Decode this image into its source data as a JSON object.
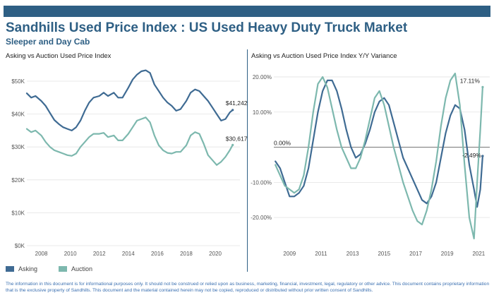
{
  "header": {
    "title": "Sandhills Used Price Index : US Used Heavy Duty Truck Market",
    "subtitle": "Sleeper and Day Cab",
    "bar_color": "#2e5f84"
  },
  "legend": {
    "asking": "Asking",
    "auction": "Auction",
    "asking_color": "#3f6b93",
    "auction_color": "#7db8ae"
  },
  "disclaimer": "The information in this document is for informational purposes only.  It should not be construed or relied upon as business, marketing, financial, investment, legal, regulatory or other advice. This document contains proprietary information that is the exclusive property of Sandhills. This document and the material contained herein may not be copied, reproduced or distributed without prior written consent of Sandhills.",
  "chart_data": [
    {
      "type": "line",
      "title": "Asking vs Auction Used Price Index",
      "ylim": [
        0,
        50000
      ],
      "xlim": [
        2007.0,
        2021.7
      ],
      "y_ticks": [
        0,
        10000,
        20000,
        30000,
        40000,
        50000
      ],
      "y_tick_labels": [
        "$0K",
        "$10K",
        "$20K",
        "$30K",
        "$40K",
        "$50K"
      ],
      "x_ticks": [
        2008,
        2010,
        2012,
        2014,
        2016,
        2018,
        2020
      ],
      "x_tick_labels": [
        "2008",
        "2010",
        "2012",
        "2014",
        "2016",
        "2018",
        "2020"
      ],
      "grid": "horizontal",
      "series": [
        {
          "name": "Asking",
          "color": "#3f6b93",
          "x": [
            2007.0,
            2007.3,
            2007.6,
            2008.0,
            2008.3,
            2008.6,
            2008.9,
            2009.2,
            2009.5,
            2009.8,
            2010.1,
            2010.4,
            2010.7,
            2011.0,
            2011.3,
            2011.6,
            2012.0,
            2012.3,
            2012.6,
            2013.0,
            2013.3,
            2013.6,
            2014.0,
            2014.3,
            2014.6,
            2014.9,
            2015.2,
            2015.5,
            2015.8,
            2016.1,
            2016.4,
            2016.7,
            2017.0,
            2017.3,
            2017.6,
            2018.0,
            2018.3,
            2018.6,
            2018.9,
            2019.2,
            2019.5,
            2019.8,
            2020.1,
            2020.4,
            2020.7,
            2021.0,
            2021.2
          ],
          "values": [
            46300,
            45000,
            45500,
            44000,
            42500,
            40300,
            38200,
            37000,
            36000,
            35500,
            35000,
            36000,
            38000,
            41000,
            43500,
            45000,
            45500,
            46500,
            45500,
            46500,
            45000,
            45000,
            48000,
            50500,
            52000,
            53000,
            53300,
            52500,
            49000,
            47000,
            45000,
            43500,
            42500,
            41000,
            41500,
            44000,
            46500,
            47500,
            47000,
            45500,
            44000,
            42000,
            40000,
            38000,
            38500,
            40500,
            41242
          ]
        },
        {
          "name": "Auction",
          "color": "#7db8ae",
          "x": [
            2007.0,
            2007.3,
            2007.6,
            2008.0,
            2008.3,
            2008.6,
            2008.9,
            2009.2,
            2009.5,
            2009.8,
            2010.1,
            2010.4,
            2010.7,
            2011.0,
            2011.3,
            2011.6,
            2012.0,
            2012.3,
            2012.6,
            2013.0,
            2013.3,
            2013.6,
            2014.0,
            2014.3,
            2014.6,
            2014.9,
            2015.2,
            2015.5,
            2015.8,
            2016.1,
            2016.4,
            2016.7,
            2017.0,
            2017.3,
            2017.6,
            2018.0,
            2018.3,
            2018.6,
            2018.9,
            2019.2,
            2019.5,
            2019.8,
            2020.1,
            2020.4,
            2020.7,
            2021.0,
            2021.2
          ],
          "values": [
            35500,
            34500,
            35000,
            33500,
            31500,
            30000,
            29000,
            28500,
            28000,
            27500,
            27300,
            28000,
            30000,
            31500,
            33000,
            34000,
            34000,
            34300,
            33000,
            33500,
            32000,
            32000,
            34000,
            36000,
            38000,
            38500,
            39000,
            37500,
            33500,
            30500,
            29000,
            28200,
            28000,
            28500,
            28500,
            30500,
            33500,
            34500,
            34000,
            31000,
            27500,
            26000,
            24500,
            25500,
            27000,
            29000,
            30617
          ]
        }
      ],
      "annotations": [
        {
          "text": "$41,242",
          "x": 2021.2,
          "y": 41242
        },
        {
          "text": "$30,617",
          "x": 2021.2,
          "y": 30617
        }
      ]
    },
    {
      "type": "line",
      "title": "Asking vs Auction Used Price Index Y/Y Variance",
      "ylim": [
        -0.28,
        0.22
      ],
      "xlim": [
        2008.0,
        2021.7
      ],
      "y_ticks": [
        -0.2,
        -0.1,
        0,
        0.1,
        0.2
      ],
      "y_tick_labels": [
        "-20.00%",
        "-10.00%",
        "0.00%",
        "10.00%",
        "20.00%"
      ],
      "x_ticks": [
        2009,
        2011,
        2013,
        2015,
        2017,
        2019,
        2021
      ],
      "x_tick_labels": [
        "2009",
        "2011",
        "2013",
        "2015",
        "2017",
        "2019",
        "2021"
      ],
      "grid": "horizontal",
      "series": [
        {
          "name": "Asking",
          "color": "#3f6b93",
          "x": [
            2008.1,
            2008.4,
            2008.7,
            2009.0,
            2009.3,
            2009.6,
            2009.9,
            2010.2,
            2010.5,
            2010.8,
            2011.1,
            2011.4,
            2011.7,
            2012.0,
            2012.3,
            2012.6,
            2012.9,
            2013.2,
            2013.5,
            2013.8,
            2014.1,
            2014.4,
            2014.7,
            2015.0,
            2015.3,
            2015.6,
            2015.9,
            2016.2,
            2016.5,
            2016.8,
            2017.1,
            2017.4,
            2017.7,
            2018.0,
            2018.3,
            2018.6,
            2018.9,
            2019.2,
            2019.5,
            2019.8,
            2020.1,
            2020.4,
            2020.7,
            2020.9,
            2021.1,
            2021.25
          ],
          "values": [
            -0.04,
            -0.06,
            -0.1,
            -0.14,
            -0.14,
            -0.13,
            -0.11,
            -0.06,
            0.02,
            0.1,
            0.16,
            0.19,
            0.19,
            0.16,
            0.11,
            0.05,
            0.0,
            -0.03,
            -0.02,
            0.01,
            0.05,
            0.1,
            0.13,
            0.14,
            0.12,
            0.07,
            0.02,
            -0.03,
            -0.06,
            -0.09,
            -0.12,
            -0.15,
            -0.16,
            -0.14,
            -0.1,
            -0.03,
            0.04,
            0.09,
            0.12,
            0.11,
            0.05,
            -0.05,
            -0.12,
            -0.17,
            -0.12,
            -0.0249
          ]
        },
        {
          "name": "Auction",
          "color": "#7db8ae",
          "x": [
            2008.1,
            2008.4,
            2008.7,
            2009.0,
            2009.3,
            2009.6,
            2009.9,
            2010.2,
            2010.5,
            2010.8,
            2011.1,
            2011.4,
            2011.7,
            2012.0,
            2012.3,
            2012.6,
            2012.9,
            2013.2,
            2013.5,
            2013.8,
            2014.1,
            2014.4,
            2014.7,
            2015.0,
            2015.3,
            2015.6,
            2015.9,
            2016.2,
            2016.5,
            2016.8,
            2017.1,
            2017.4,
            2017.7,
            2018.0,
            2018.3,
            2018.6,
            2018.9,
            2019.2,
            2019.5,
            2019.8,
            2020.1,
            2020.4,
            2020.7,
            2020.9,
            2021.1,
            2021.25
          ],
          "values": [
            -0.05,
            -0.08,
            -0.11,
            -0.12,
            -0.13,
            -0.12,
            -0.08,
            0.0,
            0.1,
            0.18,
            0.2,
            0.17,
            0.11,
            0.05,
            0.0,
            -0.03,
            -0.06,
            -0.06,
            -0.03,
            0.02,
            0.08,
            0.14,
            0.16,
            0.12,
            0.06,
            0.0,
            -0.05,
            -0.1,
            -0.14,
            -0.18,
            -0.21,
            -0.22,
            -0.18,
            -0.12,
            -0.04,
            0.06,
            0.14,
            0.19,
            0.21,
            0.12,
            -0.05,
            -0.2,
            -0.26,
            -0.1,
            0.05,
            0.1711
          ]
        }
      ],
      "annotations": [
        {
          "text": "0.00%",
          "x": 2008.0,
          "y": 0
        },
        {
          "text": "17.11%",
          "x": 2021.25,
          "y": 0.1711
        },
        {
          "text": "-2.49%",
          "x": 2021.25,
          "y": -0.0249
        }
      ]
    }
  ]
}
